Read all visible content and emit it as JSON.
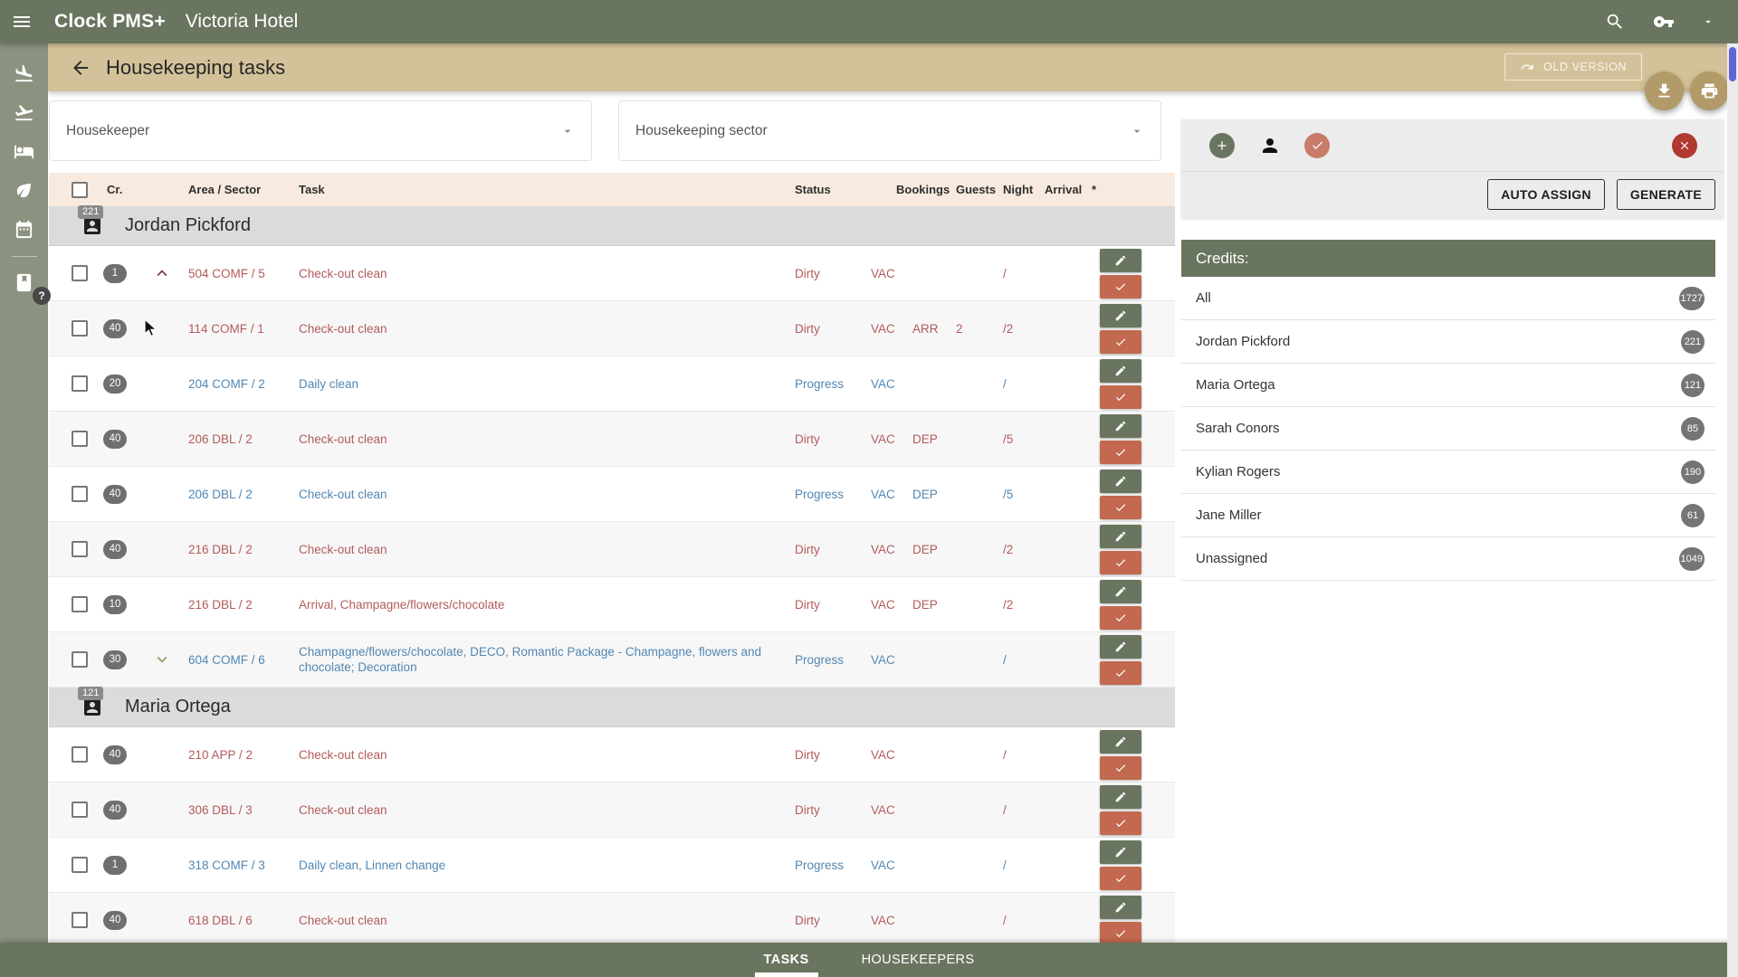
{
  "app_bar": {
    "brand": "Clock PMS+",
    "hotel": "Victoria Hotel",
    "icons": [
      "hamburger-menu",
      "search",
      "key",
      "caret-down"
    ]
  },
  "sidebar": {
    "icons": [
      "flight-land",
      "flight-takeoff",
      "bed",
      "leaf",
      "calendar",
      "book"
    ],
    "help_label": "?"
  },
  "page_header": {
    "title": "Housekeeping tasks",
    "old_version_label": "OLD VERSION"
  },
  "fabs": [
    "download",
    "print"
  ],
  "filters": {
    "housekeeper_label": "Housekeeper",
    "sector_label": "Housekeeping sector"
  },
  "table": {
    "columns": [
      "Cr.",
      "Area / Sector",
      "Task",
      "Status",
      "Bookings",
      "Guests",
      "Night",
      "Arrival",
      "*"
    ],
    "groups": [
      {
        "name": "Jordan Pickford",
        "count": "221",
        "rows": [
          {
            "cr": "1",
            "chevron": "up",
            "area": "504 COMF / 5",
            "task": "Check-out clean",
            "status": "Dirty",
            "occupancy": "VAC",
            "booking": "",
            "guests": "",
            "night": "/",
            "arrival": "",
            "state": "dirty"
          },
          {
            "cr": "40",
            "chevron": "",
            "area": "114 COMF / 1",
            "task": "Check-out clean",
            "status": "Dirty",
            "occupancy": "VAC",
            "booking": "ARR",
            "guests": "2",
            "night": "/2",
            "arrival": "",
            "state": "dirty"
          },
          {
            "cr": "20",
            "chevron": "",
            "area": "204 COMF / 2",
            "task": "Daily clean",
            "status": "Progress",
            "occupancy": "VAC",
            "booking": "",
            "guests": "",
            "night": "/",
            "arrival": "",
            "state": "progress"
          },
          {
            "cr": "40",
            "chevron": "",
            "area": "206 DBL / 2",
            "task": "Check-out clean",
            "status": "Dirty",
            "occupancy": "VAC",
            "booking": "DEP",
            "guests": "",
            "night": "/5",
            "arrival": "",
            "state": "dirty"
          },
          {
            "cr": "40",
            "chevron": "",
            "area": "206 DBL / 2",
            "task": "Check-out clean",
            "status": "Progress",
            "occupancy": "VAC",
            "booking": "DEP",
            "guests": "",
            "night": "/5",
            "arrival": "",
            "state": "progress"
          },
          {
            "cr": "40",
            "chevron": "",
            "area": "216 DBL / 2",
            "task": "Check-out clean",
            "status": "Dirty",
            "occupancy": "VAC",
            "booking": "DEP",
            "guests": "",
            "night": "/2",
            "arrival": "",
            "state": "dirty"
          },
          {
            "cr": "10",
            "chevron": "",
            "area": "216 DBL / 2",
            "task": "Arrival, Champagne/flowers/chocolate",
            "status": "Dirty",
            "occupancy": "VAC",
            "booking": "DEP",
            "guests": "",
            "night": "/2",
            "arrival": "",
            "state": "dirty"
          },
          {
            "cr": "30",
            "chevron": "down",
            "area": "604 COMF / 6",
            "task": "Champagne/flowers/chocolate, DECO, Romantic Package - Champagne, flowers and chocolate; Decoration",
            "status": "Progress",
            "occupancy": "VAC",
            "booking": "",
            "guests": "",
            "night": "/",
            "arrival": "",
            "state": "progress"
          }
        ]
      },
      {
        "name": "Maria Ortega",
        "count": "121",
        "rows": [
          {
            "cr": "40",
            "chevron": "",
            "area": "210 APP / 2",
            "task": "Check-out clean",
            "status": "Dirty",
            "occupancy": "VAC",
            "booking": "",
            "guests": "",
            "night": "/",
            "arrival": "",
            "state": "dirty"
          },
          {
            "cr": "40",
            "chevron": "",
            "area": "306 DBL / 3",
            "task": "Check-out clean",
            "status": "Dirty",
            "occupancy": "VAC",
            "booking": "",
            "guests": "",
            "night": "/",
            "arrival": "",
            "state": "dirty"
          },
          {
            "cr": "1",
            "chevron": "",
            "area": "318 COMF / 3",
            "task": "Daily clean, Linnen change",
            "status": "Progress",
            "occupancy": "VAC",
            "booking": "",
            "guests": "",
            "night": "/",
            "arrival": "",
            "state": "progress"
          },
          {
            "cr": "40",
            "chevron": "",
            "area": "618 DBL / 6",
            "task": "Check-out clean",
            "status": "Dirty",
            "occupancy": "VAC",
            "booking": "",
            "guests": "",
            "night": "/",
            "arrival": "",
            "state": "dirty"
          }
        ]
      }
    ]
  },
  "action_panel": {
    "icons": [
      "add",
      "person",
      "check-circle",
      "close-circle"
    ],
    "auto_assign_label": "AUTO ASSIGN",
    "generate_label": "GENERATE"
  },
  "credits": {
    "title": "Credits:",
    "items": [
      {
        "label": "All",
        "count": "1727"
      },
      {
        "label": "Jordan Pickford",
        "count": "221"
      },
      {
        "label": "Maria Ortega",
        "count": "121"
      },
      {
        "label": "Sarah Conors",
        "count": "85"
      },
      {
        "label": "Kylian Rogers",
        "count": "190"
      },
      {
        "label": "Jane Miller",
        "count": "61"
      },
      {
        "label": "Unassigned",
        "count": "1049"
      }
    ]
  },
  "footer": {
    "tabs": [
      {
        "label": "TASKS",
        "active": true
      },
      {
        "label": "HOUSEKEEPERS",
        "active": false
      }
    ]
  },
  "colors": {
    "app_bar": "#6A755F",
    "sidebar": "#8B927F",
    "page_header": "#D3C299",
    "fab": "#B29A69",
    "table_header": "#F8EADE",
    "group_row": "#DBDBDB",
    "dirty_text": "#B25B5C",
    "progress_text": "#5287B2",
    "edit_button": "#6A755F",
    "done_button": "#C2694F",
    "close_button": "#B03A30",
    "scroll_thumb": "#6263D6"
  }
}
